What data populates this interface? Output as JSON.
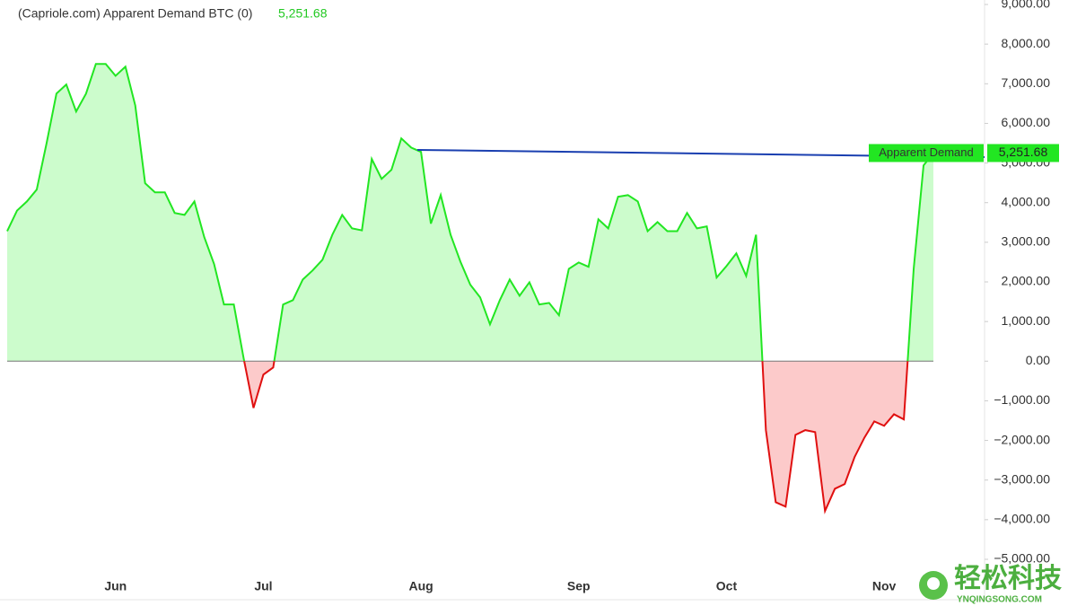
{
  "chart_data": {
    "type": "area",
    "title": "(Capriole.com) Apparent Demand BTC (0)",
    "last_value_label": "5,251.68",
    "series_label": "Apparent Demand",
    "positive_color": "#22e622",
    "negative_color": "#e01010",
    "positive_fill": "#ccfccc",
    "negative_fill": "#fccaca",
    "categories": [
      null,
      null,
      null,
      null,
      null,
      null,
      null,
      null,
      null,
      null,
      null,
      "Jun",
      null,
      null,
      null,
      null,
      null,
      null,
      null,
      null,
      null,
      null,
      null,
      null,
      null,
      null,
      "Jul",
      null,
      null,
      null,
      null,
      null,
      null,
      null,
      null,
      null,
      null,
      null,
      null,
      null,
      null,
      null,
      "Aug",
      null,
      null,
      null,
      null,
      null,
      null,
      null,
      null,
      null,
      null,
      null,
      null,
      null,
      null,
      null,
      "Sep",
      null,
      null,
      null,
      null,
      null,
      null,
      null,
      null,
      null,
      null,
      null,
      null,
      null,
      null,
      "Oct",
      null,
      null,
      null,
      null,
      null,
      null,
      null,
      null,
      null,
      null,
      null,
      null,
      null,
      null,
      null,
      "Nov",
      null,
      null,
      null,
      null,
      null
    ],
    "values": [
      3280,
      3800,
      4030,
      4330,
      5500,
      6750,
      6980,
      6300,
      6750,
      7500,
      7500,
      7200,
      7430,
      6450,
      4490,
      4260,
      4260,
      3740,
      3690,
      4030,
      3130,
      2450,
      1430,
      1430,
      70,
      -1180,
      -340,
      -160,
      1430,
      1540,
      2060,
      2290,
      2560,
      3190,
      3690,
      3350,
      3300,
      5100,
      4600,
      4830,
      5620,
      5390,
      5280,
      3470,
      4190,
      3190,
      2510,
      1930,
      1610,
      930,
      1540,
      2060,
      1650,
      1990,
      1430,
      1470,
      1160,
      2330,
      2490,
      2380,
      3580,
      3350,
      4150,
      4190,
      4030,
      3280,
      3510,
      3280,
      3280,
      3740,
      3350,
      3400,
      2110,
      2400,
      2720,
      2150,
      3190,
      -1740,
      -3560,
      -3670,
      -1860,
      -1740,
      -1790,
      -3780,
      -3220,
      -3100,
      -2420,
      -1930,
      -1520,
      -1630,
      -1340,
      -1470,
      2330,
      4940,
      5251.68
    ],
    "ylim": [
      -5000,
      9000
    ],
    "yticks": [
      {
        "value": -5000,
        "label": "−5,000.00"
      },
      {
        "value": -4000,
        "label": "−4,000.00"
      },
      {
        "value": -3000,
        "label": "−3,000.00"
      },
      {
        "value": -2000,
        "label": "−2,000.00"
      },
      {
        "value": -1000,
        "label": "−1,000.00"
      },
      {
        "value": 0,
        "label": "0.00"
      },
      {
        "value": 1000,
        "label": "1,000.00"
      },
      {
        "value": 2000,
        "label": "2,000.00"
      },
      {
        "value": 3000,
        "label": "3,000.00"
      },
      {
        "value": 4000,
        "label": "4,000.00"
      },
      {
        "value": 5000,
        "label": "5,000.00"
      },
      {
        "value": 6000,
        "label": "6,000.00"
      },
      {
        "value": 7000,
        "label": "7,000.00"
      },
      {
        "value": 8000,
        "label": "8,000.00"
      },
      {
        "value": 9000,
        "label": "9,000.00"
      }
    ]
  },
  "watermark": {
    "title": "轻松科技",
    "url": "YNQINGSONG.COM"
  }
}
